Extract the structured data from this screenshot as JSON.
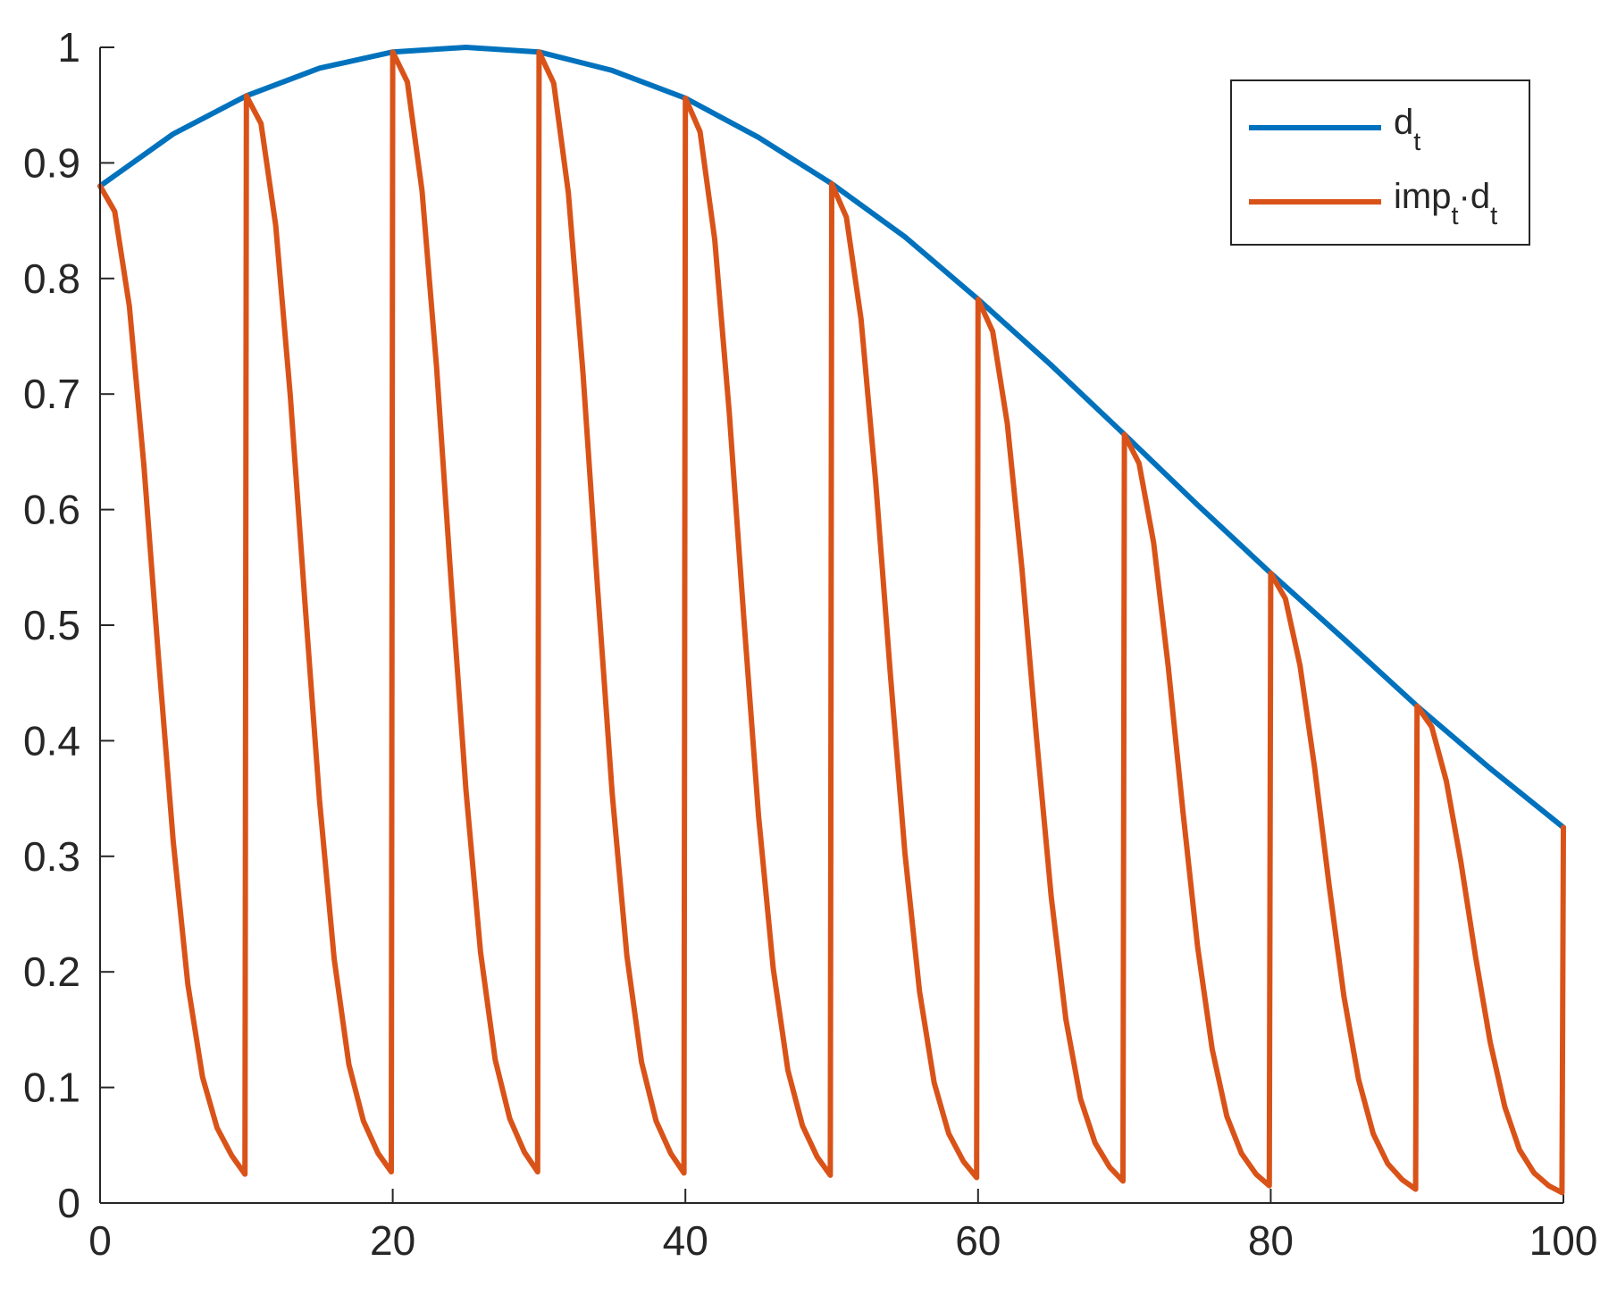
{
  "chart_data": {
    "type": "line",
    "xlim": [
      0,
      100
    ],
    "ylim": [
      0,
      1
    ],
    "x_ticks": [
      0,
      20,
      40,
      60,
      80,
      100
    ],
    "y_ticks": [
      0,
      0.1,
      0.2,
      0.3,
      0.4,
      0.5,
      0.6,
      0.7,
      0.8,
      0.9,
      1
    ],
    "x_tick_labels": [
      "0",
      "20",
      "40",
      "60",
      "80",
      "100"
    ],
    "y_tick_labels": [
      "0",
      "0.1",
      "0.2",
      "0.3",
      "0.4",
      "0.5",
      "0.6",
      "0.7",
      "0.8",
      "0.9",
      "1"
    ],
    "grid": false,
    "legend_position": "top-right",
    "series": [
      {
        "name": "d_t",
        "legend_main": "d",
        "legend_sub": "t",
        "color": "#0072BD",
        "x": [
          0,
          5,
          10,
          15,
          20,
          25,
          30,
          35,
          40,
          45,
          50,
          55,
          60,
          65,
          70,
          75,
          80,
          85,
          90,
          95,
          100
        ],
        "y": [
          0.88,
          0.925,
          0.958,
          0.982,
          0.996,
          1.0,
          0.996,
          0.98,
          0.956,
          0.922,
          0.882,
          0.836,
          0.782,
          0.725,
          0.665,
          0.604,
          0.545,
          0.488,
          0.43,
          0.376,
          0.325
        ]
      },
      {
        "name": "imp_t·d_t",
        "legend_parts": [
          "imp",
          "t",
          "·d",
          "t"
        ],
        "color": "#D95319",
        "x": [
          0,
          1,
          2,
          3,
          4,
          5,
          6,
          7,
          8,
          9,
          9.9,
          10,
          11,
          12,
          13,
          14,
          15,
          16,
          17,
          18,
          19,
          19.9,
          20,
          21,
          22,
          23,
          24,
          25,
          26,
          27,
          28,
          29,
          29.9,
          30,
          31,
          32,
          33,
          34,
          35,
          36,
          37,
          38,
          39,
          39.9,
          40,
          41,
          42,
          43,
          44,
          45,
          46,
          47,
          48,
          49,
          49.9,
          50,
          51,
          52,
          53,
          54,
          55,
          56,
          57,
          58,
          59,
          59.9,
          60,
          61,
          62,
          63,
          64,
          65,
          66,
          67,
          68,
          69,
          69.9,
          70,
          71,
          72,
          73,
          74,
          75,
          76,
          77,
          78,
          79,
          79.9,
          80,
          81,
          82,
          83,
          84,
          85,
          86,
          87,
          88,
          89,
          89.9,
          90,
          91,
          92,
          93,
          94,
          95,
          96,
          97,
          98,
          99,
          99.9,
          100
        ],
        "y": [
          0.88,
          0.858,
          0.776,
          0.638,
          0.471,
          0.313,
          0.189,
          0.109,
          0.065,
          0.041,
          0.025,
          0.958,
          0.934,
          0.846,
          0.699,
          0.52,
          0.348,
          0.211,
          0.12,
          0.071,
          0.043,
          0.027,
          0.996,
          0.97,
          0.876,
          0.723,
          0.536,
          0.358,
          0.217,
          0.124,
          0.073,
          0.044,
          0.027,
          0.996,
          0.969,
          0.874,
          0.719,
          0.532,
          0.354,
          0.214,
          0.122,
          0.071,
          0.043,
          0.026,
          0.956,
          0.927,
          0.834,
          0.684,
          0.505,
          0.335,
          0.203,
          0.115,
          0.067,
          0.04,
          0.024,
          0.882,
          0.853,
          0.765,
          0.625,
          0.459,
          0.303,
          0.183,
          0.104,
          0.06,
          0.036,
          0.022,
          0.782,
          0.754,
          0.674,
          0.549,
          0.402,
          0.265,
          0.159,
          0.09,
          0.052,
          0.031,
          0.019,
          0.665,
          0.64,
          0.571,
          0.464,
          0.339,
          0.222,
          0.133,
          0.075,
          0.043,
          0.025,
          0.015,
          0.545,
          0.523,
          0.465,
          0.377,
          0.274,
          0.179,
          0.107,
          0.06,
          0.034,
          0.02,
          0.012,
          0.43,
          0.412,
          0.365,
          0.295,
          0.213,
          0.139,
          0.083,
          0.046,
          0.026,
          0.015,
          0.009,
          0.325
        ]
      }
    ]
  }
}
